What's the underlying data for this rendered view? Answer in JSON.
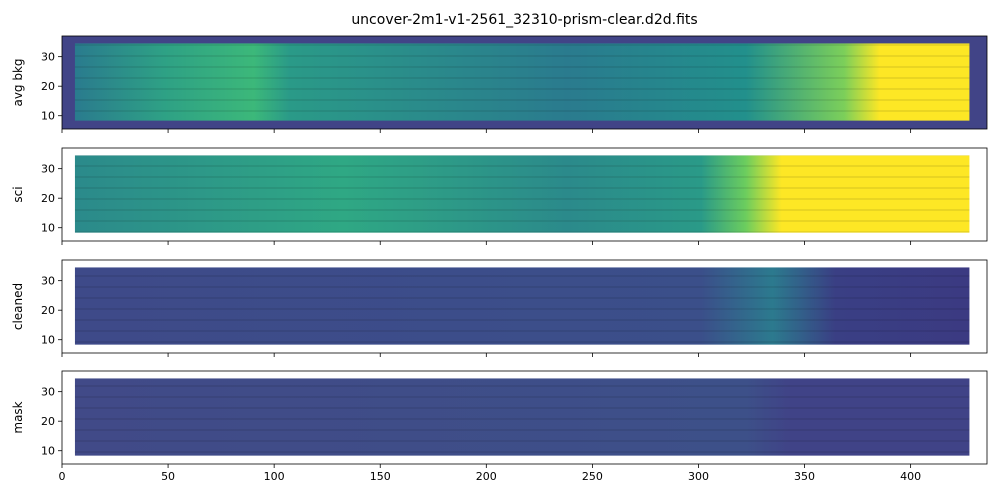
{
  "chart_data": [
    {
      "type": "image",
      "title": "uncover-2m1-v1-2561_32310-prism-clear.d2d.fits",
      "ylabel": "avg bkg",
      "xlim": [
        0,
        436
      ],
      "ylim": [
        5.5,
        37
      ],
      "xticks": [
        0,
        50,
        100,
        150,
        200,
        250,
        300,
        350,
        400
      ],
      "yticks": [
        10,
        20,
        30
      ]
    },
    {
      "type": "image",
      "ylabel": "sci",
      "xlim": [
        0,
        436
      ],
      "ylim": [
        5.5,
        37
      ],
      "xticks": [
        0,
        50,
        100,
        150,
        200,
        250,
        300,
        350,
        400
      ],
      "yticks": [
        10,
        20,
        30
      ]
    },
    {
      "type": "image",
      "ylabel": "cleaned",
      "xlim": [
        0,
        436
      ],
      "ylim": [
        5.5,
        37
      ],
      "xticks": [
        0,
        50,
        100,
        150,
        200,
        250,
        300,
        350,
        400
      ],
      "yticks": [
        10,
        20,
        30
      ]
    },
    {
      "type": "image",
      "ylabel": "mask",
      "xlim": [
        0,
        436
      ],
      "ylim": [
        5.5,
        37
      ],
      "xticks": [
        0,
        50,
        100,
        150,
        200,
        250,
        300,
        350,
        400
      ],
      "yticks": [
        10,
        20,
        30
      ]
    }
  ]
}
